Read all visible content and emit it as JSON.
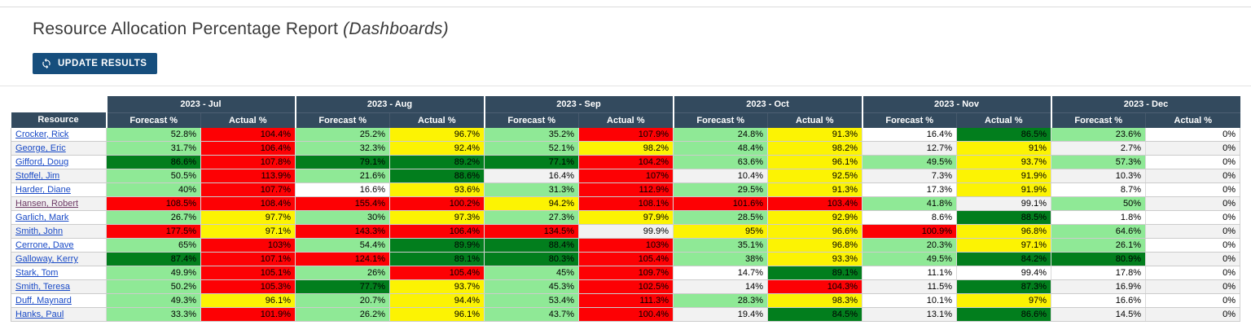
{
  "page": {
    "title": "Resource Allocation Percentage Report",
    "title_suffix": "(Dashboards)"
  },
  "toolbar": {
    "update_button_label": "UPDATE RESULTS",
    "update_button_icon": "refresh-icon"
  },
  "colors": {
    "header_bg": "#334a5e",
    "button_bg": "#164e7d",
    "link": "#1849c6",
    "visited_link": "#6d3a66",
    "stripe": "#f2f2f2",
    "cell_colors": {
      "lg": "#8fe996",
      "dg": "#027e1d",
      "y": "#fcf303",
      "r": "#fd0104",
      "": ""
    }
  },
  "table": {
    "resource_header": "Resource",
    "months": [
      "2023 - Jul",
      "2023 - Aug",
      "2023 - Sep",
      "2023 - Oct",
      "2023 - Nov",
      "2023 - Dec"
    ],
    "sub_headers": [
      "Forecast %",
      "Actual %"
    ],
    "rows": [
      {
        "name": "Crocker, Rick",
        "visited": false,
        "cells": [
          {
            "v": "52.8%",
            "c": "lg"
          },
          {
            "v": "104.4%",
            "c": "r"
          },
          {
            "v": "25.2%",
            "c": "lg"
          },
          {
            "v": "96.7%",
            "c": "y"
          },
          {
            "v": "35.2%",
            "c": "lg"
          },
          {
            "v": "107.9%",
            "c": "r"
          },
          {
            "v": "24.8%",
            "c": "lg"
          },
          {
            "v": "91.3%",
            "c": "y"
          },
          {
            "v": "16.4%",
            "c": ""
          },
          {
            "v": "86.5%",
            "c": "dg"
          },
          {
            "v": "23.6%",
            "c": "lg"
          },
          {
            "v": "0%",
            "c": ""
          }
        ]
      },
      {
        "name": "George, Eric",
        "visited": false,
        "cells": [
          {
            "v": "31.7%",
            "c": "lg"
          },
          {
            "v": "106.4%",
            "c": "r"
          },
          {
            "v": "32.3%",
            "c": "lg"
          },
          {
            "v": "92.4%",
            "c": "y"
          },
          {
            "v": "52.1%",
            "c": "lg"
          },
          {
            "v": "98.2%",
            "c": "y"
          },
          {
            "v": "48.4%",
            "c": "lg"
          },
          {
            "v": "98.2%",
            "c": "y"
          },
          {
            "v": "12.7%",
            "c": ""
          },
          {
            "v": "91%",
            "c": "y"
          },
          {
            "v": "2.7%",
            "c": ""
          },
          {
            "v": "0%",
            "c": ""
          }
        ]
      },
      {
        "name": "Gifford, Doug",
        "visited": false,
        "cells": [
          {
            "v": "86.6%",
            "c": "dg"
          },
          {
            "v": "107.8%",
            "c": "r"
          },
          {
            "v": "79.1%",
            "c": "dg"
          },
          {
            "v": "89.2%",
            "c": "dg"
          },
          {
            "v": "77.1%",
            "c": "dg"
          },
          {
            "v": "104.2%",
            "c": "r"
          },
          {
            "v": "63.6%",
            "c": "lg"
          },
          {
            "v": "96.1%",
            "c": "y"
          },
          {
            "v": "49.5%",
            "c": "lg"
          },
          {
            "v": "93.7%",
            "c": "y"
          },
          {
            "v": "57.3%",
            "c": "lg"
          },
          {
            "v": "0%",
            "c": ""
          }
        ]
      },
      {
        "name": "Stoffel, Jim",
        "visited": false,
        "cells": [
          {
            "v": "50.5%",
            "c": "lg"
          },
          {
            "v": "113.9%",
            "c": "r"
          },
          {
            "v": "21.6%",
            "c": "lg"
          },
          {
            "v": "88.6%",
            "c": "dg"
          },
          {
            "v": "16.4%",
            "c": ""
          },
          {
            "v": "107%",
            "c": "r"
          },
          {
            "v": "10.4%",
            "c": ""
          },
          {
            "v": "92.5%",
            "c": "y"
          },
          {
            "v": "7.3%",
            "c": ""
          },
          {
            "v": "91.9%",
            "c": "y"
          },
          {
            "v": "10.3%",
            "c": ""
          },
          {
            "v": "0%",
            "c": ""
          }
        ]
      },
      {
        "name": "Harder, Diane",
        "visited": false,
        "cells": [
          {
            "v": "40%",
            "c": "lg"
          },
          {
            "v": "107.7%",
            "c": "r"
          },
          {
            "v": "16.6%",
            "c": ""
          },
          {
            "v": "93.6%",
            "c": "y"
          },
          {
            "v": "31.3%",
            "c": "lg"
          },
          {
            "v": "112.9%",
            "c": "r"
          },
          {
            "v": "29.5%",
            "c": "lg"
          },
          {
            "v": "91.3%",
            "c": "y"
          },
          {
            "v": "17.3%",
            "c": ""
          },
          {
            "v": "91.9%",
            "c": "y"
          },
          {
            "v": "8.7%",
            "c": ""
          },
          {
            "v": "0%",
            "c": ""
          }
        ]
      },
      {
        "name": "Hansen, Robert",
        "visited": true,
        "cells": [
          {
            "v": "108.5%",
            "c": "r"
          },
          {
            "v": "108.4%",
            "c": "r"
          },
          {
            "v": "155.4%",
            "c": "r"
          },
          {
            "v": "100.2%",
            "c": "r"
          },
          {
            "v": "94.2%",
            "c": "y"
          },
          {
            "v": "108.1%",
            "c": "r"
          },
          {
            "v": "101.6%",
            "c": "r"
          },
          {
            "v": "103.4%",
            "c": "r"
          },
          {
            "v": "41.8%",
            "c": "lg"
          },
          {
            "v": "99.1%",
            "c": ""
          },
          {
            "v": "50%",
            "c": "lg"
          },
          {
            "v": "0%",
            "c": ""
          }
        ]
      },
      {
        "name": "Garlich, Mark",
        "visited": false,
        "cells": [
          {
            "v": "26.7%",
            "c": "lg"
          },
          {
            "v": "97.7%",
            "c": "y"
          },
          {
            "v": "30%",
            "c": "lg"
          },
          {
            "v": "97.3%",
            "c": "y"
          },
          {
            "v": "27.3%",
            "c": "lg"
          },
          {
            "v": "97.9%",
            "c": "y"
          },
          {
            "v": "28.5%",
            "c": "lg"
          },
          {
            "v": "92.9%",
            "c": "y"
          },
          {
            "v": "8.6%",
            "c": ""
          },
          {
            "v": "88.5%",
            "c": "dg"
          },
          {
            "v": "1.8%",
            "c": ""
          },
          {
            "v": "0%",
            "c": ""
          }
        ]
      },
      {
        "name": "Smith, John",
        "visited": false,
        "cells": [
          {
            "v": "177.5%",
            "c": "r"
          },
          {
            "v": "97.1%",
            "c": "y"
          },
          {
            "v": "143.3%",
            "c": "r"
          },
          {
            "v": "106.4%",
            "c": "r"
          },
          {
            "v": "134.5%",
            "c": "r"
          },
          {
            "v": "99.9%",
            "c": ""
          },
          {
            "v": "95%",
            "c": "y"
          },
          {
            "v": "96.6%",
            "c": "y"
          },
          {
            "v": "100.9%",
            "c": "r"
          },
          {
            "v": "96.8%",
            "c": "y"
          },
          {
            "v": "64.6%",
            "c": "lg"
          },
          {
            "v": "0%",
            "c": ""
          }
        ]
      },
      {
        "name": "Cerrone, Dave",
        "visited": false,
        "cells": [
          {
            "v": "65%",
            "c": "lg"
          },
          {
            "v": "103%",
            "c": "r"
          },
          {
            "v": "54.4%",
            "c": "lg"
          },
          {
            "v": "89.9%",
            "c": "dg"
          },
          {
            "v": "88.4%",
            "c": "dg"
          },
          {
            "v": "103%",
            "c": "r"
          },
          {
            "v": "35.1%",
            "c": "lg"
          },
          {
            "v": "96.8%",
            "c": "y"
          },
          {
            "v": "20.3%",
            "c": "lg"
          },
          {
            "v": "97.1%",
            "c": "y"
          },
          {
            "v": "26.1%",
            "c": "lg"
          },
          {
            "v": "0%",
            "c": ""
          }
        ]
      },
      {
        "name": "Galloway, Kerry",
        "visited": false,
        "cells": [
          {
            "v": "87.4%",
            "c": "dg"
          },
          {
            "v": "107.1%",
            "c": "r"
          },
          {
            "v": "124.1%",
            "c": "r"
          },
          {
            "v": "89.1%",
            "c": "dg"
          },
          {
            "v": "80.3%",
            "c": "dg"
          },
          {
            "v": "105.4%",
            "c": "r"
          },
          {
            "v": "38%",
            "c": "lg"
          },
          {
            "v": "93.3%",
            "c": "y"
          },
          {
            "v": "49.5%",
            "c": "lg"
          },
          {
            "v": "84.2%",
            "c": "dg"
          },
          {
            "v": "80.9%",
            "c": "dg"
          },
          {
            "v": "0%",
            "c": ""
          }
        ]
      },
      {
        "name": "Stark, Tom",
        "visited": false,
        "cells": [
          {
            "v": "49.9%",
            "c": "lg"
          },
          {
            "v": "105.1%",
            "c": "r"
          },
          {
            "v": "26%",
            "c": "lg"
          },
          {
            "v": "105.4%",
            "c": "r"
          },
          {
            "v": "45%",
            "c": "lg"
          },
          {
            "v": "109.7%",
            "c": "r"
          },
          {
            "v": "14.7%",
            "c": ""
          },
          {
            "v": "89.1%",
            "c": "dg"
          },
          {
            "v": "11.1%",
            "c": ""
          },
          {
            "v": "99.4%",
            "c": ""
          },
          {
            "v": "17.8%",
            "c": ""
          },
          {
            "v": "0%",
            "c": ""
          }
        ]
      },
      {
        "name": "Smith, Teresa",
        "visited": false,
        "cells": [
          {
            "v": "50.2%",
            "c": "lg"
          },
          {
            "v": "105.3%",
            "c": "r"
          },
          {
            "v": "77.7%",
            "c": "dg"
          },
          {
            "v": "93.7%",
            "c": "y"
          },
          {
            "v": "45.3%",
            "c": "lg"
          },
          {
            "v": "102.5%",
            "c": "r"
          },
          {
            "v": "14%",
            "c": ""
          },
          {
            "v": "104.3%",
            "c": "r"
          },
          {
            "v": "11.5%",
            "c": ""
          },
          {
            "v": "87.3%",
            "c": "dg"
          },
          {
            "v": "16.9%",
            "c": ""
          },
          {
            "v": "0%",
            "c": ""
          }
        ]
      },
      {
        "name": "Duff, Maynard",
        "visited": false,
        "cells": [
          {
            "v": "49.3%",
            "c": "lg"
          },
          {
            "v": "96.1%",
            "c": "y"
          },
          {
            "v": "20.7%",
            "c": "lg"
          },
          {
            "v": "94.4%",
            "c": "y"
          },
          {
            "v": "53.4%",
            "c": "lg"
          },
          {
            "v": "111.3%",
            "c": "r"
          },
          {
            "v": "28.3%",
            "c": "lg"
          },
          {
            "v": "98.3%",
            "c": "y"
          },
          {
            "v": "10.1%",
            "c": ""
          },
          {
            "v": "97%",
            "c": "y"
          },
          {
            "v": "16.6%",
            "c": ""
          },
          {
            "v": "0%",
            "c": ""
          }
        ]
      },
      {
        "name": "Hanks, Paul",
        "visited": false,
        "cells": [
          {
            "v": "33.3%",
            "c": "lg"
          },
          {
            "v": "101.9%",
            "c": "r"
          },
          {
            "v": "26.2%",
            "c": "lg"
          },
          {
            "v": "96.1%",
            "c": "y"
          },
          {
            "v": "43.7%",
            "c": "lg"
          },
          {
            "v": "100.4%",
            "c": "r"
          },
          {
            "v": "19.4%",
            "c": ""
          },
          {
            "v": "84.5%",
            "c": "dg"
          },
          {
            "v": "13.1%",
            "c": ""
          },
          {
            "v": "86.6%",
            "c": "dg"
          },
          {
            "v": "14.5%",
            "c": ""
          },
          {
            "v": "0%",
            "c": ""
          }
        ]
      }
    ]
  }
}
